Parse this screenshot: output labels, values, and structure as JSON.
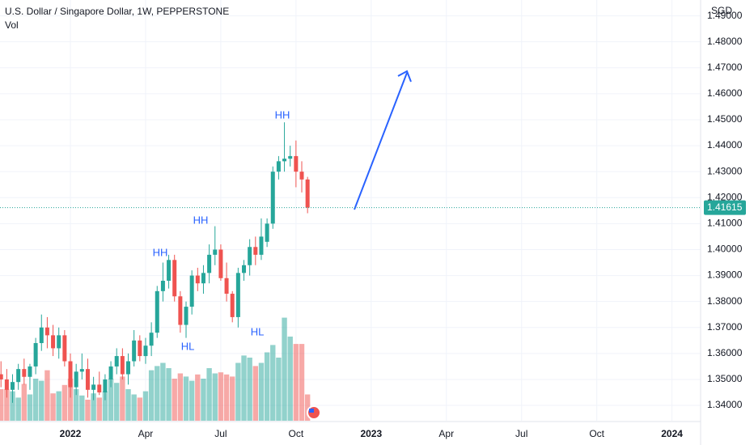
{
  "chart_data": {
    "type": "candlestick",
    "title": "U.S. Dollar / Singapore Dollar, 1W, PEPPERSTONE",
    "volume_label": "Vol",
    "currency": "SGD",
    "up_color": "#26a69a",
    "down_color": "#ef5350",
    "x": [
      -12,
      -11,
      -10,
      -9,
      -8,
      -7,
      -6,
      -5,
      -4,
      -3,
      -2,
      -1,
      0,
      1,
      2,
      3,
      4,
      5,
      6,
      7,
      8,
      9,
      10,
      11,
      12,
      13,
      14,
      15,
      16,
      17,
      18,
      19,
      20,
      21,
      22,
      23,
      24,
      25,
      26,
      27,
      28,
      29,
      30,
      31,
      32,
      33,
      34,
      35,
      36,
      37,
      38,
      39,
      40,
      41
    ],
    "open": [
      1.352,
      1.35,
      1.346,
      1.349,
      1.354,
      1.351,
      1.355,
      1.364,
      1.37,
      1.367,
      1.362,
      1.367,
      1.357,
      1.347,
      1.353,
      1.354,
      1.346,
      1.348,
      1.345,
      1.35,
      1.355,
      1.359,
      1.352,
      1.357,
      1.365,
      1.359,
      1.363,
      1.368,
      1.384,
      1.388,
      1.396,
      1.382,
      1.371,
      1.378,
      1.39,
      1.387,
      1.391,
      1.398,
      1.4,
      1.389,
      1.383,
      1.374,
      1.391,
      1.394,
      1.401,
      1.398,
      1.403,
      1.41,
      1.43,
      1.434,
      1.435,
      1.436,
      1.43,
      1.427
    ],
    "high": [
      1.357,
      1.354,
      1.352,
      1.356,
      1.358,
      1.356,
      1.366,
      1.375,
      1.374,
      1.371,
      1.37,
      1.369,
      1.36,
      1.356,
      1.36,
      1.358,
      1.351,
      1.353,
      1.352,
      1.357,
      1.362,
      1.362,
      1.36,
      1.369,
      1.367,
      1.366,
      1.372,
      1.386,
      1.395,
      1.398,
      1.398,
      1.384,
      1.38,
      1.392,
      1.393,
      1.394,
      1.402,
      1.409,
      1.402,
      1.395,
      1.384,
      1.393,
      1.396,
      1.404,
      1.405,
      1.412,
      1.412,
      1.432,
      1.436,
      1.449,
      1.44,
      1.442,
      1.434,
      1.428
    ],
    "low": [
      1.347,
      1.343,
      1.341,
      1.346,
      1.348,
      1.346,
      1.352,
      1.361,
      1.362,
      1.359,
      1.358,
      1.355,
      1.343,
      1.344,
      1.35,
      1.343,
      1.342,
      1.344,
      1.342,
      1.347,
      1.352,
      1.35,
      1.348,
      1.355,
      1.357,
      1.356,
      1.359,
      1.366,
      1.38,
      1.385,
      1.38,
      1.368,
      1.366,
      1.375,
      1.384,
      1.383,
      1.387,
      1.394,
      1.388,
      1.38,
      1.372,
      1.37,
      1.388,
      1.39,
      1.394,
      1.396,
      1.401,
      1.408,
      1.427,
      1.43,
      1.432,
      1.424,
      1.422,
      1.414
    ],
    "close": [
      1.35,
      1.346,
      1.349,
      1.354,
      1.351,
      1.355,
      1.364,
      1.37,
      1.367,
      1.362,
      1.367,
      1.357,
      1.347,
      1.353,
      1.354,
      1.346,
      1.348,
      1.345,
      1.35,
      1.355,
      1.359,
      1.352,
      1.357,
      1.365,
      1.359,
      1.363,
      1.368,
      1.384,
      1.388,
      1.396,
      1.382,
      1.371,
      1.378,
      1.39,
      1.387,
      1.391,
      1.398,
      1.4,
      1.389,
      1.383,
      1.374,
      1.391,
      1.394,
      1.401,
      1.398,
      1.405,
      1.41,
      1.43,
      1.434,
      1.435,
      1.436,
      1.43,
      1.427,
      1.41615
    ],
    "volume": [
      30,
      30,
      28,
      22,
      35,
      25,
      40,
      38,
      48,
      26,
      28,
      34,
      40,
      30,
      24,
      20,
      26,
      22,
      28,
      40,
      36,
      42,
      30,
      25,
      22,
      28,
      48,
      52,
      55,
      50,
      40,
      45,
      42,
      38,
      44,
      40,
      50,
      45,
      46,
      44,
      42,
      55,
      62,
      60,
      52,
      55,
      65,
      72,
      60,
      98,
      80,
      73,
      73,
      25
    ],
    "xlim": [
      -12.17,
      108.95
    ],
    "xticks": [
      {
        "value": 0,
        "label": "2022"
      },
      {
        "value": 13,
        "label": "Apr"
      },
      {
        "value": 26,
        "label": "Jul"
      },
      {
        "value": 39,
        "label": "Oct"
      },
      {
        "value": 52,
        "label": "2023"
      },
      {
        "value": 65,
        "label": "Apr"
      },
      {
        "value": 78,
        "label": "Jul"
      },
      {
        "value": 91,
        "label": "Oct"
      },
      {
        "value": 104,
        "label": "2024"
      }
    ],
    "ylim": [
      1.3341,
      1.4961
    ],
    "yticks": [
      {
        "value": 1.34,
        "label": "1.34000"
      },
      {
        "value": 1.35,
        "label": "1.35000"
      },
      {
        "value": 1.36,
        "label": "1.36000"
      },
      {
        "value": 1.37,
        "label": "1.37000"
      },
      {
        "value": 1.38,
        "label": "1.38000"
      },
      {
        "value": 1.39,
        "label": "1.39000"
      },
      {
        "value": 1.4,
        "label": "1.40000"
      },
      {
        "value": 1.41,
        "label": "1.41000"
      },
      {
        "value": 1.42,
        "label": "1.42000"
      },
      {
        "value": 1.43,
        "label": "1.43000"
      },
      {
        "value": 1.44,
        "label": "1.44000"
      },
      {
        "value": 1.45,
        "label": "1.45000"
      },
      {
        "value": 1.46,
        "label": "1.46000"
      },
      {
        "value": 1.47,
        "label": "1.47000"
      },
      {
        "value": 1.48,
        "label": "1.48000"
      },
      {
        "value": 1.49,
        "label": "1.49000"
      }
    ],
    "y2lim": [
      0,
      400
    ],
    "last_price": 1.41615,
    "annotations": [
      "HH",
      "HL",
      "HH",
      "HL",
      "HH"
    ]
  }
}
